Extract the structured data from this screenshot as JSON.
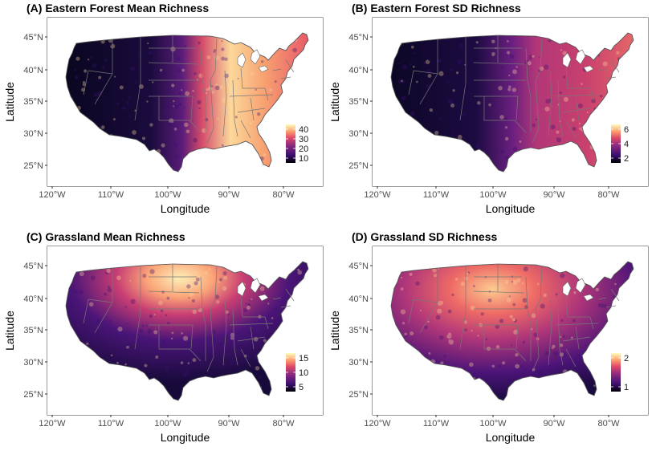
{
  "panels": [
    {
      "title": "(A) Eastern Forest Mean Richness",
      "legend_ticks": [
        "40",
        "30",
        "20",
        "10"
      ],
      "pattern": "east"
    },
    {
      "title": "(B) Eastern Forest SD Richness",
      "legend_ticks": [
        "6",
        "4",
        "2"
      ],
      "pattern": "east_sd"
    },
    {
      "title": "(C) Grassland Mean Richness",
      "legend_ticks": [
        "15",
        "10",
        "5"
      ],
      "pattern": "plains"
    },
    {
      "title": "(D) Grassland SD Richness",
      "legend_ticks": [
        "2",
        "1"
      ],
      "pattern": "plains_sd"
    }
  ],
  "axes": {
    "xlabel": "Longitude",
    "ylabel": "Latitude",
    "x_ticks": [
      "120°W",
      "110°W",
      "100°W",
      "90°W",
      "80°W"
    ],
    "y_ticks": [
      "45°N",
      "40°N",
      "35°N",
      "30°N",
      "25°N"
    ]
  },
  "colors": {
    "low": "#0d0829",
    "mid": "#8c2981",
    "high": "#fcfdbf",
    "border": "#777777"
  }
}
